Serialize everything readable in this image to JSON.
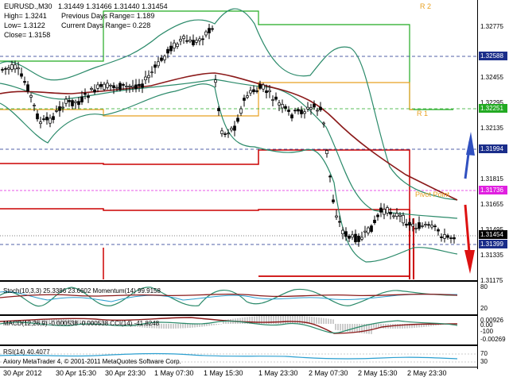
{
  "header": {
    "symbol": "EURUSD.,M30",
    "ohlc": "1.31449 1.31466 1.31440 1.31454",
    "high": "High= 1.3241",
    "prev_range": "Previous Days Range= 1.189",
    "low": "Low= 1.3122",
    "curr_range": "Current Days Range= 0.228",
    "close": "Close= 1.3158"
  },
  "levels": {
    "r2": "R 2",
    "r1": "R 1",
    "pivot": "Pivot Point"
  },
  "price_axis": [
    "1.32775",
    "1.32455",
    "1.32295",
    "1.32135",
    "1.31815",
    "1.31655",
    "1.31495",
    "1.31335",
    "1.31175"
  ],
  "price_tags": {
    "t1": "1.32588",
    "t1_color": "#1a2d8a",
    "t2": "1.32251",
    "t2_color": "#22aa22",
    "t3": "1.31994",
    "t3_color": "#1a2d8a",
    "t4": "1.31736",
    "t4_color": "#e020e0",
    "t5": "1.31454",
    "t5_color": "#000000",
    "t6": "1.31399",
    "t6_color": "#1a2d8a"
  },
  "stoch_pane": {
    "label": "Stoch(10,3,3) 25.3386 23.6602  Momentum(14) 99.9158",
    "axis": [
      "80",
      "20"
    ]
  },
  "macd_pane": {
    "label": "MACD(12,26,9) -0.000538 -0.000538  CCI(14) -41.8248",
    "axis": [
      "0.00926",
      "0.00",
      "-100",
      "-0.00269"
    ]
  },
  "rsi_pane": {
    "label": "RSI(14) 40.4077",
    "axis": [
      "70",
      "30"
    ]
  },
  "copyright": "Axiory MetaTrader 4, © 2001-2011 MetaQuotes Software Corp.",
  "time_axis": [
    "30 Apr 2012",
    "30 Apr 15:30",
    "30 Apr 23:30",
    "1 May 07:30",
    "1 May 15:30",
    "1 May 23:30",
    "2 May 07:30",
    "2 May 15:30",
    "2 May 23:30"
  ],
  "colors": {
    "bollinger": "#2b8a6a",
    "ma": "#8b1a1a",
    "r_level": "#cc0000",
    "r2": "#22aa22",
    "r1": "#e8a020",
    "pivot": "#e020e0",
    "blue": "#1a2d8a",
    "arrow_up": "#3050c0",
    "arrow_down": "#dd1111"
  }
}
